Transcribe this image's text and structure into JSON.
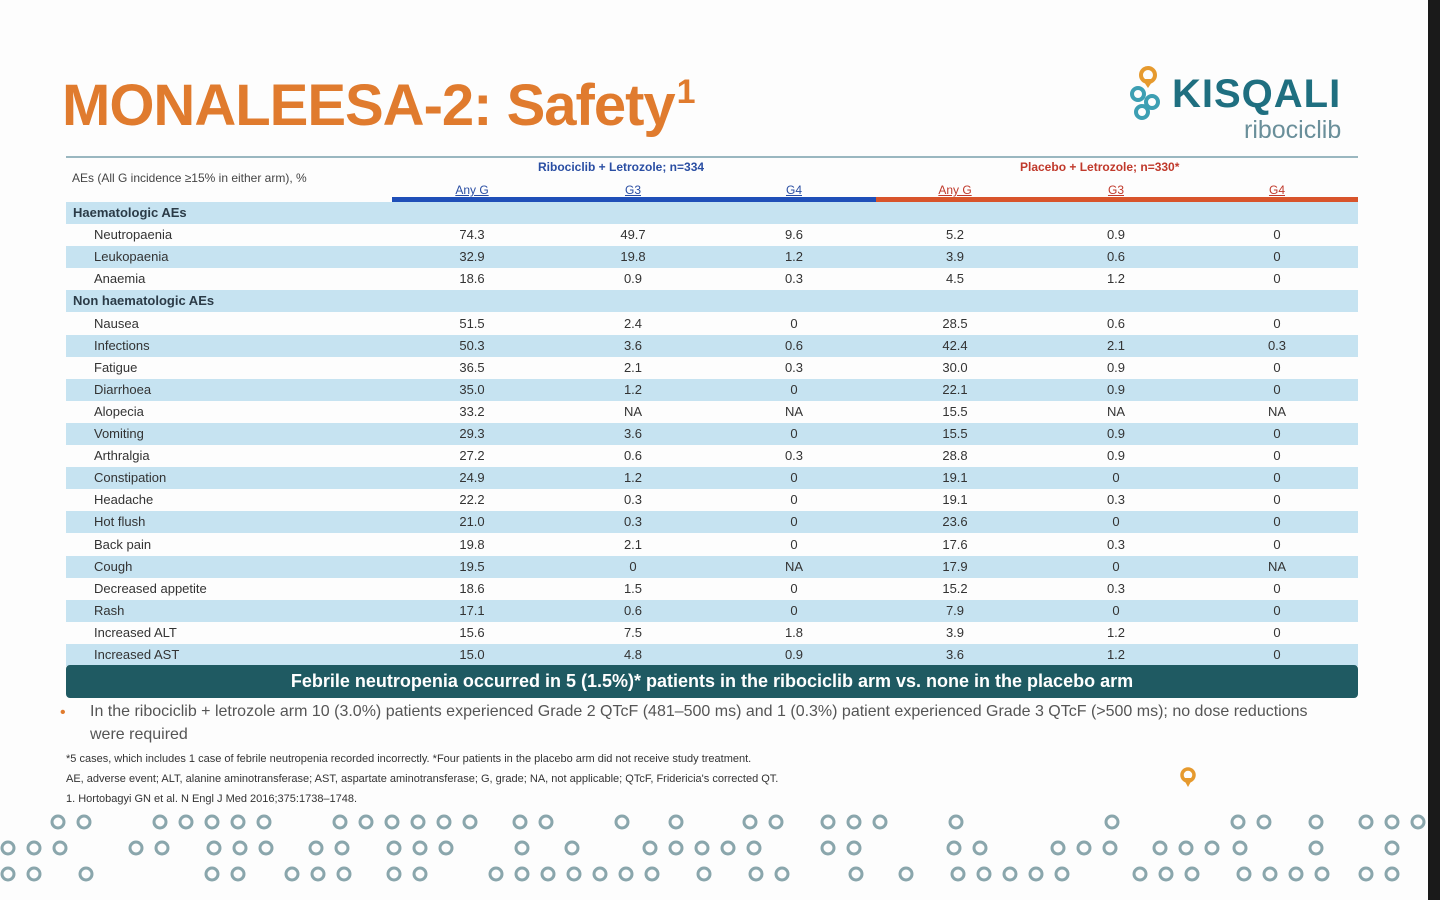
{
  "title": {
    "text": "MONALEESA-2: Safety",
    "sup": "1"
  },
  "logo": {
    "brand": "KISQALI",
    "sub": "ribociclib"
  },
  "table": {
    "ae_header": "AEs (All G incidence ≥15% in either arm), %",
    "arm1": "Ribociclib + Letrozole; n=334",
    "arm2": "Placebo + Letrozole; n=330*",
    "col_any": "Any G",
    "col_g3": "G3",
    "col_g4": "G4",
    "rows": [
      {
        "label": "Haematologic AEs",
        "section": true,
        "vals": []
      },
      {
        "label": "Neutropaenia",
        "vals": [
          "74.3",
          "49.7",
          "9.6",
          "5.2",
          "0.9",
          "0"
        ]
      },
      {
        "label": "Leukopaenia",
        "vals": [
          "32.9",
          "19.8",
          "1.2",
          "3.9",
          "0.6",
          "0"
        ]
      },
      {
        "label": "Anaemia",
        "vals": [
          "18.6",
          "0.9",
          "0.3",
          "4.5",
          "1.2",
          "0"
        ]
      },
      {
        "label": "Non haematologic AEs",
        "section": true,
        "vals": []
      },
      {
        "label": "Nausea",
        "vals": [
          "51.5",
          "2.4",
          "0",
          "28.5",
          "0.6",
          "0"
        ]
      },
      {
        "label": "Infections",
        "vals": [
          "50.3",
          "3.6",
          "0.6",
          "42.4",
          "2.1",
          "0.3"
        ]
      },
      {
        "label": "Fatigue",
        "vals": [
          "36.5",
          "2.1",
          "0.3",
          "30.0",
          "0.9",
          "0"
        ]
      },
      {
        "label": "Diarrhoea",
        "vals": [
          "35.0",
          "1.2",
          "0",
          "22.1",
          "0.9",
          "0"
        ]
      },
      {
        "label": "Alopecia",
        "vals": [
          "33.2",
          "NA",
          "NA",
          "15.5",
          "NA",
          "NA"
        ]
      },
      {
        "label": "Vomiting",
        "vals": [
          "29.3",
          "3.6",
          "0",
          "15.5",
          "0.9",
          "0"
        ]
      },
      {
        "label": "Arthralgia",
        "vals": [
          "27.2",
          "0.6",
          "0.3",
          "28.8",
          "0.9",
          "0"
        ]
      },
      {
        "label": "Constipation",
        "vals": [
          "24.9",
          "1.2",
          "0",
          "19.1",
          "0",
          "0"
        ]
      },
      {
        "label": "Headache",
        "vals": [
          "22.2",
          "0.3",
          "0",
          "19.1",
          "0.3",
          "0"
        ]
      },
      {
        "label": "Hot flush",
        "vals": [
          "21.0",
          "0.3",
          "0",
          "23.6",
          "0",
          "0"
        ]
      },
      {
        "label": "Back pain",
        "vals": [
          "19.8",
          "2.1",
          "0",
          "17.6",
          "0.3",
          "0"
        ]
      },
      {
        "label": "Cough",
        "vals": [
          "19.5",
          "0",
          "NA",
          "17.9",
          "0",
          "NA"
        ]
      },
      {
        "label": "Decreased appetite",
        "vals": [
          "18.6",
          "1.5",
          "0",
          "15.2",
          "0.3",
          "0"
        ]
      },
      {
        "label": "Rash",
        "vals": [
          "17.1",
          "0.6",
          "0",
          "7.9",
          "0",
          "0"
        ]
      },
      {
        "label": "Increased ALT",
        "vals": [
          "15.6",
          "7.5",
          "1.8",
          "3.9",
          "1.2",
          "0"
        ]
      },
      {
        "label": "Increased AST",
        "vals": [
          "15.0",
          "4.8",
          "0.9",
          "3.6",
          "1.2",
          "0"
        ]
      }
    ]
  },
  "banner": "Febrile neutropenia occurred in 5 (1.5%)* patients in the ribociclib arm vs. none in the placebo arm",
  "note": "In the ribociclib + letrozole arm 10 (3.0%) patients experienced Grade 2 QTcF (481–500 ms) and 1 (0.3%) patient experienced Grade 3 QTcF (>500 ms); no dose reductions were required",
  "footnotes": {
    "f1": "*5 cases, which includes 1 case of febrile neutropenia recorded incorrectly. *Four patients in the placebo arm did not receive study treatment.",
    "f2": "AE, adverse event; ALT, alanine aminotransferase; AST, aspartate aminotransferase; G, grade; NA, not applicable; QTcF, Fridericia's corrected QT.",
    "f3": "1. Hortobagyi GN et al. N Engl J Med 2016;375:1738–1748."
  },
  "colors": {
    "orange": "#e07b2e",
    "teal": "#1f5a62",
    "band": "#c6e3f1",
    "blue": "#1f4fb8",
    "red": "#d8542b"
  }
}
